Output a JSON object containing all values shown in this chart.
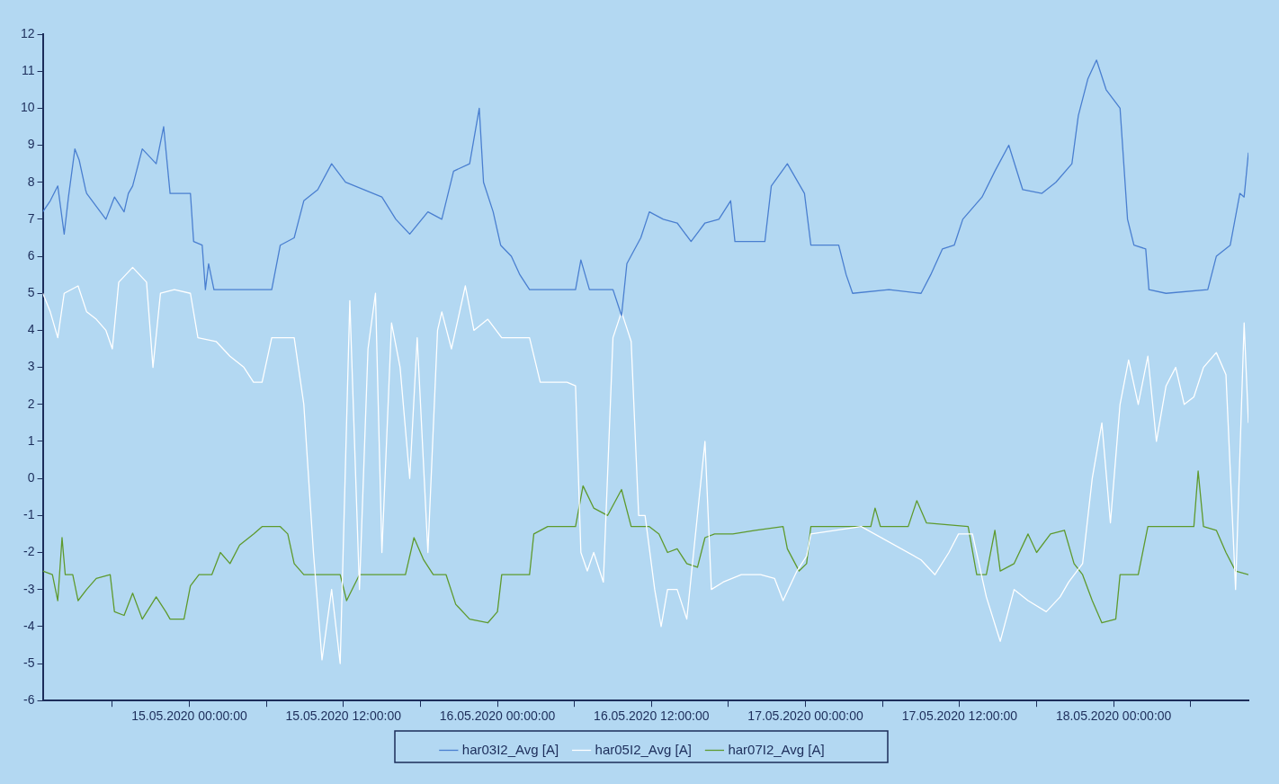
{
  "chart_data": {
    "type": "line",
    "grid": false,
    "legend": "bottom",
    "marker": "none",
    "line_style": "solid",
    "xlim": [
      "2020-05-14T12:35",
      "2020-05-18T10:30"
    ],
    "xticks": [
      {
        "value": "2020-05-14T18:00",
        "label": null
      },
      {
        "value": "2020-05-15T00:00",
        "label": "15.05.2020 00:00:00"
      },
      {
        "value": "2020-05-15T06:00",
        "label": null
      },
      {
        "value": "2020-05-15T12:00",
        "label": "15.05.2020 12:00:00"
      },
      {
        "value": "2020-05-15T18:00",
        "label": null
      },
      {
        "value": "2020-05-16T00:00",
        "label": "16.05.2020 00:00:00"
      },
      {
        "value": "2020-05-16T06:00",
        "label": null
      },
      {
        "value": "2020-05-16T12:00",
        "label": "16.05.2020 12:00:00"
      },
      {
        "value": "2020-05-16T18:00",
        "label": null
      },
      {
        "value": "2020-05-17T00:00",
        "label": "17.05.2020 00:00:00"
      },
      {
        "value": "2020-05-17T06:00",
        "label": null
      },
      {
        "value": "2020-05-17T12:00",
        "label": "17.05.2020 12:00:00"
      },
      {
        "value": "2020-05-17T18:00",
        "label": null
      },
      {
        "value": "2020-05-18T00:00",
        "label": "18.05.2020 00:00:00"
      },
      {
        "value": "2020-05-18T06:00",
        "label": null
      }
    ],
    "ylim": [
      -6,
      12
    ],
    "yticks": [
      -6,
      -5,
      -4,
      -3,
      -2,
      -1,
      0,
      1,
      2,
      3,
      4,
      5,
      6,
      7,
      8,
      9,
      10,
      11,
      12
    ],
    "series": [
      {
        "name": "har03I2_Avg [A]",
        "color": "#4a7fd0",
        "x": [
          "2020-05-14T12:35",
          "2020-05-14T13:10",
          "2020-05-14T13:45",
          "2020-05-14T14:15",
          "2020-05-14T14:35",
          "2020-05-14T15:05",
          "2020-05-14T15:25",
          "2020-05-14T15:55",
          "2020-05-14T16:00",
          "2020-05-14T17:30",
          "2020-05-14T18:10",
          "2020-05-14T18:55",
          "2020-05-14T19:15",
          "2020-05-14T19:35",
          "2020-05-14T20:20",
          "2020-05-14T21:25",
          "2020-05-14T22:00",
          "2020-05-14T22:30",
          "2020-05-15T00:05",
          "2020-05-15T00:20",
          "2020-05-15T01:00",
          "2020-05-15T01:15",
          "2020-05-15T01:30",
          "2020-05-15T01:55",
          "2020-05-15T06:25",
          "2020-05-15T07:05",
          "2020-05-15T08:10",
          "2020-05-15T08:55",
          "2020-05-15T10:00",
          "2020-05-15T11:05",
          "2020-05-15T12:10",
          "2020-05-15T13:35",
          "2020-05-15T15:00",
          "2020-05-15T16:05",
          "2020-05-15T17:10",
          "2020-05-15T18:35",
          "2020-05-15T19:40",
          "2020-05-15T20:35",
          "2020-05-15T21:50",
          "2020-05-15T22:35",
          "2020-05-15T22:55",
          "2020-05-15T23:40",
          "2020-05-16T00:15",
          "2020-05-16T01:05",
          "2020-05-16T01:45",
          "2020-05-16T02:30",
          "2020-05-16T06:05",
          "2020-05-16T06:30",
          "2020-05-16T07:10",
          "2020-05-16T09:00",
          "2020-05-16T09:40",
          "2020-05-16T10:05",
          "2020-05-16T11:10",
          "2020-05-16T11:50",
          "2020-05-16T12:55",
          "2020-05-16T14:00",
          "2020-05-16T15:05",
          "2020-05-16T16:10",
          "2020-05-16T17:15",
          "2020-05-16T18:10",
          "2020-05-16T18:30",
          "2020-05-16T20:50",
          "2020-05-16T21:20",
          "2020-05-16T22:35",
          "2020-05-16T23:55",
          "2020-05-17T00:25",
          "2020-05-17T02:35",
          "2020-05-17T03:10",
          "2020-05-17T03:40",
          "2020-05-17T06:30",
          "2020-05-17T09:00",
          "2020-05-17T09:45",
          "2020-05-17T10:40",
          "2020-05-17T11:35",
          "2020-05-17T12:15",
          "2020-05-17T13:45",
          "2020-05-17T14:45",
          "2020-05-17T15:50",
          "2020-05-17T16:55",
          "2020-05-17T18:25",
          "2020-05-17T19:30",
          "2020-05-17T20:45",
          "2020-05-17T21:15",
          "2020-05-17T22:00",
          "2020-05-17T22:40",
          "2020-05-17T23:25",
          "2020-05-18T00:30",
          "2020-05-18T01:05",
          "2020-05-18T01:35",
          "2020-05-18T02:30",
          "2020-05-18T02:45",
          "2020-05-18T04:05",
          "2020-05-18T07:20",
          "2020-05-18T08:00",
          "2020-05-18T09:05",
          "2020-05-18T09:50",
          "2020-05-18T10:10",
          "2020-05-18T10:30"
        ],
        "values": [
          7.2,
          7.5,
          7.9,
          6.6,
          7.6,
          8.9,
          8.6,
          7.8,
          7.7,
          7.0,
          7.6,
          7.2,
          7.7,
          7.9,
          8.9,
          8.5,
          9.5,
          7.7,
          7.7,
          6.4,
          6.3,
          5.1,
          5.8,
          5.1,
          5.1,
          6.3,
          6.5,
          7.5,
          7.8,
          8.5,
          8.0,
          7.8,
          7.6,
          7.0,
          6.6,
          7.2,
          7.0,
          8.3,
          8.5,
          10.0,
          8.0,
          7.2,
          6.3,
          6.0,
          5.5,
          5.1,
          5.1,
          5.9,
          5.1,
          5.1,
          4.4,
          5.8,
          6.5,
          7.2,
          7.0,
          6.9,
          6.4,
          6.9,
          7.0,
          7.5,
          6.4,
          6.4,
          7.9,
          8.5,
          7.7,
          6.3,
          6.3,
          5.5,
          5.0,
          5.1,
          5.0,
          5.5,
          6.2,
          6.3,
          7.0,
          7.6,
          8.3,
          9.0,
          7.8,
          7.7,
          8.0,
          8.5,
          9.8,
          10.8,
          11.3,
          10.5,
          10.0,
          7.0,
          6.3,
          6.2,
          5.1,
          5.0,
          5.1,
          6.0,
          6.3,
          7.7,
          7.6,
          8.8
        ]
      },
      {
        "name": "har05I2_Avg [A]",
        "color": "#ffffff",
        "x": [
          "2020-05-14T12:35",
          "2020-05-14T13:10",
          "2020-05-14T13:45",
          "2020-05-14T14:15",
          "2020-05-14T15:20",
          "2020-05-14T16:00",
          "2020-05-14T16:45",
          "2020-05-14T17:30",
          "2020-05-14T18:00",
          "2020-05-14T18:30",
          "2020-05-14T19:35",
          "2020-05-14T20:40",
          "2020-05-14T21:10",
          "2020-05-14T21:45",
          "2020-05-14T22:50",
          "2020-05-15T00:05",
          "2020-05-15T00:40",
          "2020-05-15T02:05",
          "2020-05-15T03:10",
          "2020-05-15T04:15",
          "2020-05-15T05:00",
          "2020-05-15T05:40",
          "2020-05-15T06:25",
          "2020-05-15T08:10",
          "2020-05-15T08:55",
          "2020-05-15T09:40",
          "2020-05-15T10:20",
          "2020-05-15T11:05",
          "2020-05-15T11:45",
          "2020-05-15T12:30",
          "2020-05-15T13:15",
          "2020-05-15T13:55",
          "2020-05-15T14:30",
          "2020-05-15T15:00",
          "2020-05-15T15:45",
          "2020-05-15T16:25",
          "2020-05-15T17:10",
          "2020-05-15T17:45",
          "2020-05-15T18:35",
          "2020-05-15T19:20",
          "2020-05-15T19:40",
          "2020-05-15T20:25",
          "2020-05-15T21:30",
          "2020-05-15T22:10",
          "2020-05-15T23:15",
          "2020-05-16T00:20",
          "2020-05-16T01:25",
          "2020-05-16T02:30",
          "2020-05-16T03:20",
          "2020-05-16T05:25",
          "2020-05-16T06:05",
          "2020-05-16T06:30",
          "2020-05-16T07:00",
          "2020-05-16T07:30",
          "2020-05-16T08:15",
          "2020-05-16T09:00",
          "2020-05-16T09:40",
          "2020-05-16T10:25",
          "2020-05-16T11:00",
          "2020-05-16T11:30",
          "2020-05-16T12:15",
          "2020-05-16T12:45",
          "2020-05-16T13:15",
          "2020-05-16T14:00",
          "2020-05-16T14:45",
          "2020-05-16T16:10",
          "2020-05-16T16:40",
          "2020-05-16T17:35",
          "2020-05-16T19:00",
          "2020-05-16T20:30",
          "2020-05-16T21:35",
          "2020-05-16T22:15",
          "2020-05-16T23:20",
          "2020-05-17T00:05",
          "2020-05-17T00:25",
          "2020-05-17T04:20",
          "2020-05-17T09:00",
          "2020-05-17T10:05",
          "2020-05-17T11:10",
          "2020-05-17T11:55",
          "2020-05-17T13:00",
          "2020-05-17T14:05",
          "2020-05-17T15:10",
          "2020-05-17T16:15",
          "2020-05-17T17:20",
          "2020-05-17T18:45",
          "2020-05-17T19:50",
          "2020-05-17T20:30",
          "2020-05-17T21:35",
          "2020-05-17T22:20",
          "2020-05-17T23:05",
          "2020-05-17T23:45",
          "2020-05-18T00:30",
          "2020-05-18T01:10",
          "2020-05-18T01:55",
          "2020-05-18T02:40",
          "2020-05-18T03:20",
          "2020-05-18T04:05",
          "2020-05-18T04:50",
          "2020-05-18T05:30",
          "2020-05-18T06:15",
          "2020-05-18T07:00",
          "2020-05-18T08:00",
          "2020-05-18T08:45",
          "2020-05-18T09:30",
          "2020-05-18T10:10",
          "2020-05-18T10:30"
        ],
        "values": [
          5.0,
          4.5,
          3.8,
          5.0,
          5.2,
          4.5,
          4.3,
          4.0,
          3.5,
          5.3,
          5.7,
          5.3,
          3.0,
          5.0,
          5.1,
          5.0,
          3.8,
          3.7,
          3.3,
          3.0,
          2.6,
          2.6,
          3.8,
          3.8,
          2.0,
          -2.0,
          -4.9,
          -3.0,
          -5.0,
          4.8,
          -3.0,
          3.5,
          5.0,
          -2.0,
          4.2,
          3.0,
          0.0,
          3.8,
          -2.0,
          4.0,
          4.5,
          3.5,
          5.2,
          4.0,
          4.3,
          3.8,
          3.8,
          3.8,
          2.6,
          2.6,
          2.5,
          -2.0,
          -2.5,
          -2.0,
          -2.8,
          3.8,
          4.5,
          3.7,
          -1.0,
          -1.0,
          -3.0,
          -4.0,
          -3.0,
          -3.0,
          -3.8,
          1.0,
          -3.0,
          -2.8,
          -2.6,
          -2.6,
          -2.7,
          -3.3,
          -2.5,
          -2.1,
          -1.5,
          -1.3,
          -2.2,
          -2.6,
          -2.0,
          -1.5,
          -1.5,
          -3.2,
          -4.4,
          -3.0,
          -3.3,
          -3.6,
          -3.2,
          -2.8,
          -2.3,
          0.0,
          1.5,
          -1.2,
          2.0,
          3.2,
          2.0,
          3.3,
          1.0,
          2.5,
          3.0,
          2.0,
          2.2,
          3.0,
          3.4,
          2.8,
          -3.0,
          4.2,
          1.5
        ]
      },
      {
        "name": "har07I2_Avg [A]",
        "color": "#5e9a2e",
        "x": [
          "2020-05-14T12:35",
          "2020-05-14T13:20",
          "2020-05-14T13:45",
          "2020-05-14T14:05",
          "2020-05-14T14:20",
          "2020-05-14T14:55",
          "2020-05-14T15:20",
          "2020-05-14T16:00",
          "2020-05-14T16:45",
          "2020-05-14T17:50",
          "2020-05-14T18:10",
          "2020-05-14T18:55",
          "2020-05-14T19:35",
          "2020-05-14T20:20",
          "2020-05-14T21:25",
          "2020-05-14T22:10",
          "2020-05-14T22:30",
          "2020-05-14T23:35",
          "2020-05-15T00:05",
          "2020-05-15T00:45",
          "2020-05-15T01:45",
          "2020-05-15T02:25",
          "2020-05-15T03:10",
          "2020-05-15T03:55",
          "2020-05-15T05:00",
          "2020-05-15T05:40",
          "2020-05-15T07:05",
          "2020-05-15T07:40",
          "2020-05-15T08:10",
          "2020-05-15T08:55",
          "2020-05-15T10:40",
          "2020-05-15T11:45",
          "2020-05-15T12:15",
          "2020-05-15T13:15",
          "2020-05-15T15:00",
          "2020-05-15T16:50",
          "2020-05-15T17:30",
          "2020-05-15T18:15",
          "2020-05-15T19:00",
          "2020-05-15T20:00",
          "2020-05-15T20:45",
          "2020-05-15T21:50",
          "2020-05-15T23:15",
          "2020-05-16T00:00",
          "2020-05-16T00:20",
          "2020-05-16T01:45",
          "2020-05-16T02:30",
          "2020-05-16T02:50",
          "2020-05-16T03:55",
          "2020-05-16T06:05",
          "2020-05-16T06:40",
          "2020-05-16T07:30",
          "2020-05-16T08:35",
          "2020-05-16T09:40",
          "2020-05-16T10:25",
          "2020-05-16T11:50",
          "2020-05-16T12:35",
          "2020-05-16T13:15",
          "2020-05-16T14:00",
          "2020-05-16T14:45",
          "2020-05-16T15:35",
          "2020-05-16T16:10",
          "2020-05-16T16:55",
          "2020-05-16T18:20",
          "2020-05-16T20:05",
          "2020-05-16T22:15",
          "2020-05-16T22:35",
          "2020-05-16T23:30",
          "2020-05-17T00:05",
          "2020-05-17T00:25",
          "2020-05-17T05:05",
          "2020-05-17T05:25",
          "2020-05-17T05:50",
          "2020-05-17T08:00",
          "2020-05-17T08:40",
          "2020-05-17T09:25",
          "2020-05-17T12:40",
          "2020-05-17T13:20",
          "2020-05-17T14:05",
          "2020-05-17T14:45",
          "2020-05-17T15:10",
          "2020-05-17T16:15",
          "2020-05-17T17:20",
          "2020-05-17T18:00",
          "2020-05-17T19:05",
          "2020-05-17T20:10",
          "2020-05-17T20:55",
          "2020-05-17T21:35",
          "2020-05-17T22:20",
          "2020-05-17T23:05",
          "2020-05-18T00:10",
          "2020-05-18T00:30",
          "2020-05-18T01:55",
          "2020-05-18T02:40",
          "2020-05-18T06:15",
          "2020-05-18T06:35",
          "2020-05-18T07:00",
          "2020-05-18T08:00",
          "2020-05-18T08:45",
          "2020-05-18T09:30",
          "2020-05-18T10:30"
        ],
        "values": [
          -2.5,
          -2.6,
          -3.3,
          -1.6,
          -2.6,
          -2.6,
          -3.3,
          -3.0,
          -2.7,
          -2.6,
          -3.6,
          -3.7,
          -3.1,
          -3.8,
          -3.2,
          -3.6,
          -3.8,
          -3.8,
          -2.9,
          -2.6,
          -2.6,
          -2.0,
          -2.3,
          -1.8,
          -1.5,
          -1.3,
          -1.3,
          -1.5,
          -2.3,
          -2.6,
          -2.6,
          -2.6,
          -3.3,
          -2.6,
          -2.6,
          -2.6,
          -1.6,
          -2.2,
          -2.6,
          -2.6,
          -3.4,
          -3.8,
          -3.9,
          -3.6,
          -2.6,
          -2.6,
          -2.6,
          -1.5,
          -1.3,
          -1.3,
          -0.2,
          -0.8,
          -1.0,
          -0.3,
          -1.3,
          -1.3,
          -1.5,
          -2.0,
          -1.9,
          -2.3,
          -2.4,
          -1.6,
          -1.5,
          -1.5,
          -1.4,
          -1.3,
          -1.9,
          -2.5,
          -2.3,
          -1.3,
          -1.3,
          -0.8,
          -1.3,
          -1.3,
          -0.6,
          -1.2,
          -1.3,
          -2.6,
          -2.6,
          -1.4,
          -2.5,
          -2.3,
          -1.5,
          -2.0,
          -1.5,
          -1.4,
          -2.3,
          -2.6,
          -3.3,
          -3.9,
          -3.8,
          -2.6,
          -2.6,
          -1.3,
          -1.3,
          0.2,
          -1.3,
          -1.4,
          -2.0,
          -2.5,
          -2.6
        ]
      }
    ]
  }
}
